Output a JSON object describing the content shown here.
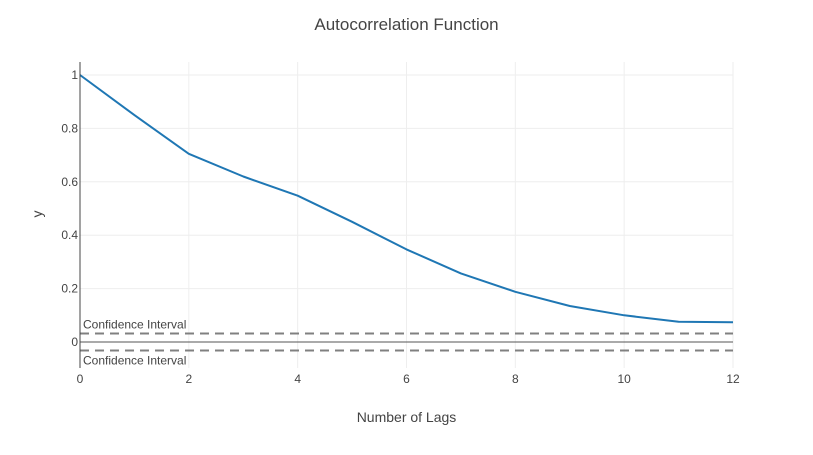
{
  "chart_data": {
    "type": "line",
    "title": "Autocorrelation Function",
    "xlabel": "Number of Lags",
    "ylabel": "y",
    "xlim": [
      0,
      12
    ],
    "ylim": [
      -0.1,
      1.05
    ],
    "x_ticks": [
      0,
      2,
      4,
      6,
      8,
      10,
      12
    ],
    "y_ticks": [
      0,
      0.2,
      0.4,
      0.6,
      0.8,
      1
    ],
    "y_tick_labels": [
      "0",
      "0.2",
      "0.4",
      "0.6",
      "0.8",
      "1"
    ],
    "grid": true,
    "series": [
      {
        "x": [
          0,
          1,
          2,
          3,
          4,
          5,
          6,
          7,
          8,
          9,
          10,
          11,
          12
        ],
        "values": [
          1.0,
          0.85,
          0.705,
          0.62,
          0.548,
          0.45,
          0.347,
          0.257,
          0.188,
          0.135,
          0.1,
          0.076,
          0.074
        ],
        "color": "#1f77b4"
      }
    ],
    "confidence_interval": {
      "upper": 0.032,
      "lower": -0.032,
      "upper_label": "Confidence Interval",
      "lower_label": "Confidence Interval",
      "color": "#808080"
    }
  }
}
